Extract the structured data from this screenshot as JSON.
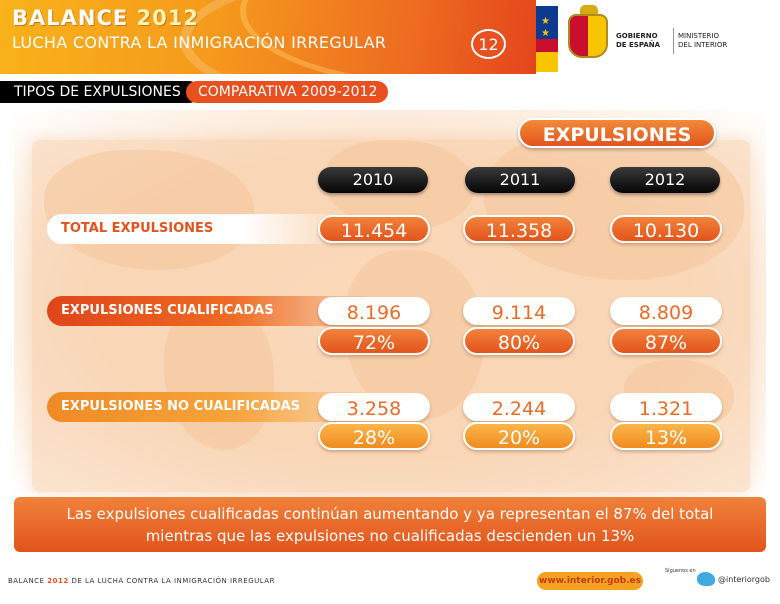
{
  "header": {
    "brand_title": "BALANCE",
    "brand_year": "2012",
    "subtitle": "LUCHA CONTRA LA INMIGRACIÓN IRREGULAR",
    "page_number": "12",
    "gobierno_line1": "GOBIERNO",
    "gobierno_line2": "DE ESPAÑA",
    "ministerio_line1": "MINISTERIO",
    "ministerio_line2": "DEL INTERIOR"
  },
  "section": {
    "title": "TIPOS DE EXPULSIONES",
    "subtitle": "COMPARATIVA 2009-2012"
  },
  "table": {
    "heading": "EXPULSIONES",
    "years": [
      "2010",
      "2011",
      "2012"
    ],
    "rows": [
      {
        "label": "TOTAL EXPULSIONES",
        "values": [
          "11.454",
          "11.358",
          "10.130"
        ]
      },
      {
        "label": "EXPULSIONES CUALIFICADAS",
        "values": [
          "8.196",
          "9.114",
          "8.809"
        ],
        "percents": [
          "72%",
          "80%",
          "87%"
        ]
      },
      {
        "label": "EXPULSIONES NO CUALIFICADAS",
        "values": [
          "3.258",
          "2.244",
          "1.321"
        ],
        "percents": [
          "28%",
          "20%",
          "13%"
        ]
      }
    ]
  },
  "summary": {
    "line1": "Las expulsiones cualificadas continúan aumentando y ya representan el 87% del total",
    "line2": "mientras que las expulsiones no cualificadas descienden un 13%"
  },
  "footer": {
    "text_prefix": "BALANCE",
    "text_year": "2012",
    "text_suffix": "DE LA LUCHA CONTRA LA INMIGRACIÓN IRREGULAR",
    "website": "www.interior.gob.es",
    "follow_label": "Síguenos en",
    "twitter_handle": "@interiorgob"
  },
  "colors": {
    "accent_orange": "#e8501f",
    "amber": "#f4a21f",
    "black": "#000000"
  },
  "icons": [
    "eu-flag-icon",
    "coat-of-arms-icon",
    "twitter-icon"
  ]
}
